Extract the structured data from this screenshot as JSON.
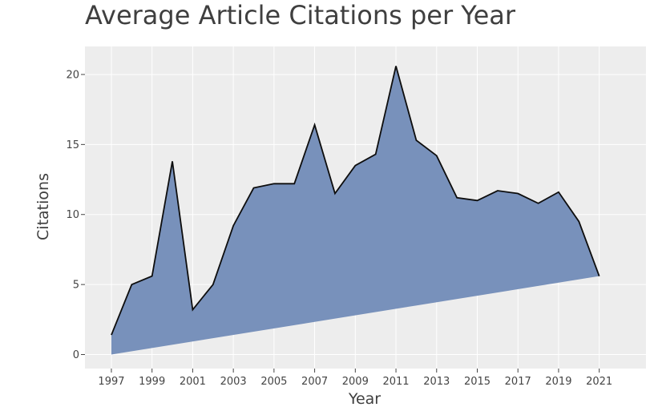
{
  "chart_data": {
    "type": "area",
    "title": "Average Article Citations per Year",
    "xlabel": "Year",
    "ylabel": "Citations",
    "x": [
      1997,
      1998,
      1999,
      2000,
      2001,
      2002,
      2003,
      2004,
      2005,
      2006,
      2007,
      2008,
      2009,
      2010,
      2011,
      2012,
      2013,
      2014,
      2015,
      2016,
      2017,
      2018,
      2019,
      2020,
      2021
    ],
    "values": [
      1.4,
      5.0,
      5.6,
      13.8,
      3.2,
      5.0,
      9.2,
      11.9,
      12.2,
      12.2,
      16.4,
      11.5,
      13.5,
      14.3,
      20.6,
      15.3,
      14.2,
      11.2,
      11.0,
      11.7,
      11.5,
      10.8,
      11.6,
      9.5,
      5.6
    ],
    "baseline": [
      [
        1997,
        0
      ],
      [
        2021,
        5.6
      ]
    ],
    "x_ticks": [
      "1997",
      "1999",
      "2001",
      "2003",
      "2005",
      "2007",
      "2009",
      "2011",
      "2013",
      "2015",
      "2017",
      "2019",
      "2021"
    ],
    "y_ticks": [
      "0",
      "5",
      "10",
      "15",
      "20"
    ],
    "xlim": [
      1995.7,
      2023.3
    ],
    "ylim": [
      -1,
      22
    ],
    "grid": true,
    "legend": "none",
    "colors": {
      "fill": "#7891bb",
      "line": "#0d0d0d",
      "plot_background": "#ededed",
      "grid": "#ffffff"
    }
  }
}
